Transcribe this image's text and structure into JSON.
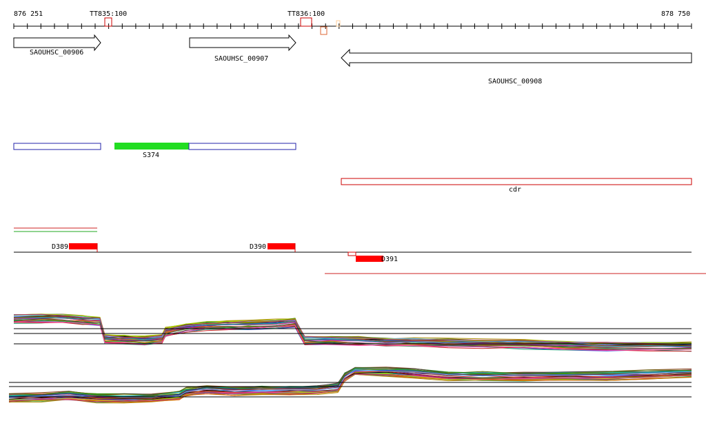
{
  "coords": {
    "start": "876 251",
    "end": "878 750"
  },
  "terminators": [
    {
      "label": "TT835:100",
      "color": "#cc0000"
    },
    {
      "label": "TT836:100",
      "color": "#cc0000"
    }
  ],
  "genes": [
    {
      "name": "SAOUHSC_00906",
      "strand": "+"
    },
    {
      "name": "SAOUHSC_00907",
      "strand": "+"
    },
    {
      "name": "SAOUHSC_00908",
      "strand": "-"
    }
  ],
  "segments": [
    {
      "label": "S374",
      "color": "#22dd22"
    }
  ],
  "regions": [
    {
      "label": "cdr",
      "color": "#cc0000"
    }
  ],
  "dtracks": [
    {
      "label": "D389",
      "color": "#ff0000"
    },
    {
      "label": "D390",
      "color": "#ff0000"
    },
    {
      "label": "D391",
      "color": "#ff0000"
    }
  ],
  "colors": {
    "tiling": [
      "#cc2222",
      "#22aa22",
      "#2233cc",
      "#aa8800",
      "#9933aa",
      "#00aaaa",
      "#dd6600",
      "#557700",
      "#884422",
      "#ff44aa",
      "#444444",
      "#66aaff",
      "#aacc00",
      "#aa3366",
      "#33aa77",
      "#000000"
    ]
  }
}
